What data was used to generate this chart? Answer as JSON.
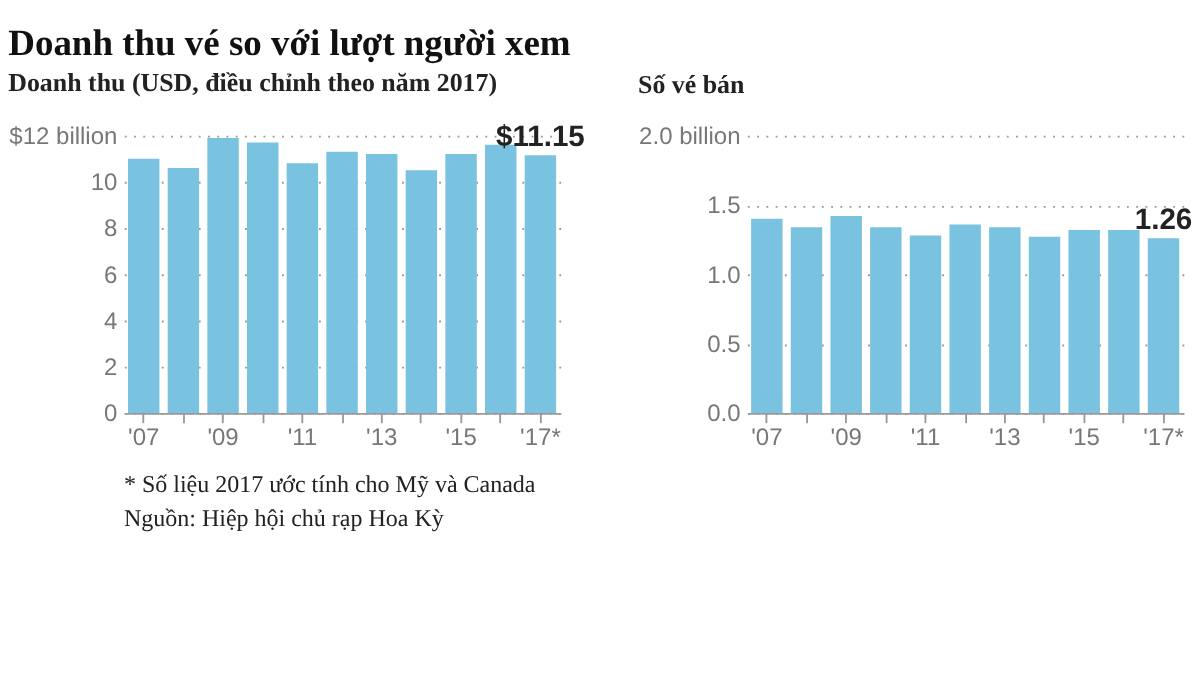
{
  "chart_data": [
    {
      "type": "bar",
      "title": "Doanh thu vé so với lượt người xem",
      "subtitle": "Doanh thu (USD, điều chỉnh theo năm 2017)",
      "categories": [
        "'07",
        null,
        "'09",
        null,
        "'11",
        null,
        "'13",
        null,
        "'15",
        null,
        "'17*"
      ],
      "values": [
        11.0,
        10.6,
        11.9,
        11.7,
        10.8,
        11.3,
        11.2,
        10.5,
        11.2,
        11.6,
        11.15
      ],
      "value_labels": [
        null,
        null,
        null,
        null,
        null,
        null,
        null,
        null,
        null,
        null,
        "$11.15"
      ],
      "color": "#79c2e0",
      "ylim": [
        0,
        12
      ],
      "yticks": [
        0,
        2,
        4,
        6,
        8,
        10,
        {
          "value": 12,
          "label": "$12 billion"
        }
      ],
      "grid": "y",
      "line_style": "dotted",
      "annotations": [
        "* Số liệu 2017 ước tính cho Mỹ và Canada",
        "Nguồn: Hiệp hội chủ rạp Hoa Kỳ"
      ]
    },
    {
      "type": "bar",
      "subtitle": "Số vé bán",
      "categories": [
        "'07",
        null,
        "'09",
        null,
        "'11",
        null,
        "'13",
        null,
        "'15",
        null,
        "'17*"
      ],
      "values": [
        1.4,
        1.34,
        1.42,
        1.34,
        1.28,
        1.36,
        1.34,
        1.27,
        1.32,
        1.32,
        1.26
      ],
      "value_labels": [
        null,
        null,
        null,
        null,
        null,
        null,
        null,
        null,
        null,
        null,
        "1.26"
      ],
      "color": "#79c2e0",
      "ylim": [
        0,
        2
      ],
      "yticks": [
        {
          "value": 0,
          "label": "0.0"
        },
        {
          "value": 0.5,
          "label": "0.5"
        },
        {
          "value": 1,
          "label": "1.0"
        },
        {
          "value": 1.5,
          "label": "1.5"
        },
        {
          "value": 2,
          "label": "2.0 billion"
        }
      ],
      "grid": "y",
      "line_style": "dotted"
    }
  ]
}
